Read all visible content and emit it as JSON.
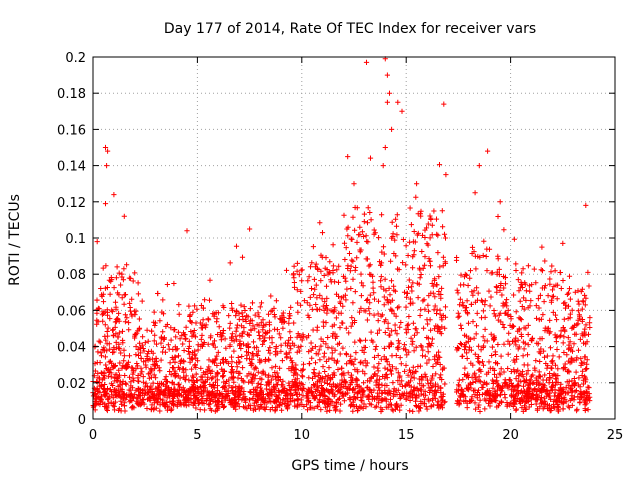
{
  "chart_data": {
    "type": "scatter",
    "title": "Day 177 of 2014, Rate Of TEC Index for receiver vars",
    "xlabel": "GPS time / hours",
    "ylabel": "ROTI / TECUs",
    "xlim": [
      0,
      25
    ],
    "ylim": [
      0,
      0.2
    ],
    "xticks": [
      0,
      5,
      10,
      15,
      20,
      25
    ],
    "xtick_labels": [
      "0",
      "5",
      "10",
      "15",
      "20",
      "25"
    ],
    "yticks": [
      0,
      0.02,
      0.04,
      0.06,
      0.08,
      0.1,
      0.12,
      0.14,
      0.16,
      0.18,
      0.2
    ],
    "ytick_labels": [
      "0",
      "0.02",
      "0.04",
      "0.06",
      "0.08",
      "0.1",
      "0.12",
      "0.14",
      "0.16",
      "0.18",
      "0.2"
    ],
    "grid": true,
    "marker": "+",
    "color": "#ff0000",
    "data_coverage_hours": [
      0,
      23.8
    ],
    "data_gap_hours": [
      16.9,
      17.4
    ],
    "notable_points": [
      {
        "x": 0.6,
        "y": 0.15
      },
      {
        "x": 0.7,
        "y": 0.148
      },
      {
        "x": 0.65,
        "y": 0.14
      },
      {
        "x": 0.6,
        "y": 0.119
      },
      {
        "x": 1.0,
        "y": 0.124
      },
      {
        "x": 1.5,
        "y": 0.112
      },
      {
        "x": 0.2,
        "y": 0.098
      },
      {
        "x": 4.5,
        "y": 0.104
      },
      {
        "x": 7.5,
        "y": 0.105
      },
      {
        "x": 12.2,
        "y": 0.145
      },
      {
        "x": 12.5,
        "y": 0.13
      },
      {
        "x": 13.1,
        "y": 0.197
      },
      {
        "x": 14.0,
        "y": 0.199
      },
      {
        "x": 14.1,
        "y": 0.19
      },
      {
        "x": 14.2,
        "y": 0.18
      },
      {
        "x": 14.1,
        "y": 0.175
      },
      {
        "x": 14.6,
        "y": 0.175
      },
      {
        "x": 14.8,
        "y": 0.17
      },
      {
        "x": 14.3,
        "y": 0.16
      },
      {
        "x": 14.0,
        "y": 0.15
      },
      {
        "x": 13.9,
        "y": 0.14
      },
      {
        "x": 15.5,
        "y": 0.13
      },
      {
        "x": 16.8,
        "y": 0.174
      },
      {
        "x": 16.9,
        "y": 0.135
      },
      {
        "x": 18.5,
        "y": 0.14
      },
      {
        "x": 18.9,
        "y": 0.148
      },
      {
        "x": 18.3,
        "y": 0.125
      },
      {
        "x": 19.5,
        "y": 0.12
      },
      {
        "x": 21.5,
        "y": 0.095
      },
      {
        "x": 22.5,
        "y": 0.097
      },
      {
        "x": 23.6,
        "y": 0.118
      },
      {
        "x": 23.7,
        "y": 0.081
      },
      {
        "x": 23.8,
        "y": 0.056
      }
    ]
  }
}
